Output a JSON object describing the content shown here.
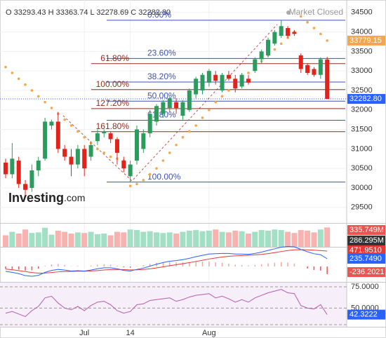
{
  "chart_data": {
    "type": "candlestick",
    "ohlc_names": [
      "O",
      "H",
      "L",
      "C"
    ],
    "last_close_label": "32282.80",
    "status": "Market Closed",
    "watermark": [
      "Investing",
      ".com"
    ],
    "up_color": "#2b9b5e",
    "down_color": "#e2231a",
    "categories": [
      null,
      null,
      null,
      null,
      null,
      null,
      null,
      null,
      null,
      null,
      null,
      null,
      "Jul",
      null,
      null,
      null,
      null,
      null,
      null,
      "14",
      null,
      null,
      null,
      null,
      null,
      null,
      null,
      null,
      null,
      null,
      null,
      "Aug",
      null,
      null,
      null,
      null,
      null,
      null,
      null,
      null,
      null,
      null,
      null,
      null,
      null,
      null,
      null,
      null,
      null,
      null
    ],
    "ylim": [
      29100,
      34820
    ],
    "yticks": [
      29500,
      30000,
      30500,
      31000,
      31500,
      32000,
      32500,
      33000,
      33500,
      34000,
      34500
    ],
    "grid": true,
    "candles": [
      {
        "o": 30650,
        "h": 30750,
        "l": 30250,
        "c": 30350
      },
      {
        "o": 30350,
        "h": 31150,
        "l": 30250,
        "c": 30750
      },
      {
        "o": 30700,
        "h": 30800,
        "l": 30000,
        "c": 30100
      },
      {
        "o": 30100,
        "h": 30200,
        "l": 29800,
        "c": 29950
      },
      {
        "o": 30000,
        "h": 30600,
        "l": 29900,
        "c": 30450
      },
      {
        "o": 30450,
        "h": 30800,
        "l": 30300,
        "c": 30700
      },
      {
        "o": 30750,
        "h": 31800,
        "l": 30700,
        "c": 31700
      },
      {
        "o": 31600,
        "h": 31750,
        "l": 31500,
        "c": 31700
      },
      {
        "o": 31700,
        "h": 31950,
        "l": 30900,
        "c": 31000
      },
      {
        "o": 31000,
        "h": 31100,
        "l": 30700,
        "c": 30800
      },
      {
        "o": 30800,
        "h": 31000,
        "l": 30300,
        "c": 30600
      },
      {
        "o": 30600,
        "h": 31100,
        "l": 30500,
        "c": 31000
      },
      {
        "o": 31000,
        "h": 31100,
        "l": 30300,
        "c": 30500
      },
      {
        "o": 30800,
        "h": 31200,
        "l": 30700,
        "c": 31100
      },
      {
        "o": 31200,
        "h": 31500,
        "l": 31100,
        "c": 31400
      },
      {
        "o": 31400,
        "h": 31500,
        "l": 31300,
        "c": 31450
      },
      {
        "o": 31400,
        "h": 31450,
        "l": 31150,
        "c": 31250
      },
      {
        "o": 31250,
        "h": 31300,
        "l": 30600,
        "c": 30900
      },
      {
        "o": 30700,
        "h": 30800,
        "l": 30400,
        "c": 30500
      },
      {
        "o": 30300,
        "h": 30700,
        "l": 30150,
        "c": 30600
      },
      {
        "o": 30700,
        "h": 31600,
        "l": 30600,
        "c": 31500
      },
      {
        "o": 31000,
        "h": 31500,
        "l": 30900,
        "c": 31400
      },
      {
        "o": 31400,
        "h": 32000,
        "l": 31300,
        "c": 31900
      },
      {
        "o": 31700,
        "h": 32150,
        "l": 31600,
        "c": 32100
      },
      {
        "o": 31900,
        "h": 32250,
        "l": 31800,
        "c": 32200
      },
      {
        "o": 32050,
        "h": 32350,
        "l": 31950,
        "c": 32300
      },
      {
        "o": 32200,
        "h": 32300,
        "l": 31900,
        "c": 32050
      },
      {
        "o": 31850,
        "h": 32250,
        "l": 31750,
        "c": 32200
      },
      {
        "o": 32000,
        "h": 32550,
        "l": 31950,
        "c": 32500
      },
      {
        "o": 32400,
        "h": 32850,
        "l": 32300,
        "c": 32800
      },
      {
        "o": 32500,
        "h": 32950,
        "l": 32400,
        "c": 32900
      },
      {
        "o": 32700,
        "h": 33050,
        "l": 32600,
        "c": 33000
      },
      {
        "o": 32900,
        "h": 33000,
        "l": 32650,
        "c": 32750
      },
      {
        "o": 32500,
        "h": 32950,
        "l": 32450,
        "c": 32900
      },
      {
        "o": 32900,
        "h": 33000,
        "l": 32750,
        "c": 32800
      },
      {
        "o": 32800,
        "h": 32900,
        "l": 32450,
        "c": 32550
      },
      {
        "o": 32600,
        "h": 32950,
        "l": 32550,
        "c": 32900
      },
      {
        "o": 32800,
        "h": 32900,
        "l": 32650,
        "c": 32700
      },
      {
        "o": 33000,
        "h": 33350,
        "l": 32950,
        "c": 33300
      },
      {
        "o": 33300,
        "h": 33550,
        "l": 33200,
        "c": 33500
      },
      {
        "o": 33400,
        "h": 33850,
        "l": 33350,
        "c": 33800
      },
      {
        "o": 33700,
        "h": 34050,
        "l": 33650,
        "c": 34000
      },
      {
        "o": 33900,
        "h": 34300,
        "l": 33850,
        "c": 34150
      },
      {
        "o": 34100,
        "h": 34150,
        "l": 33850,
        "c": 33900
      },
      {
        "o": 34000,
        "h": 34050,
        "l": 33900,
        "c": 33950
      },
      {
        "o": 33400,
        "h": 33450,
        "l": 32950,
        "c": 33050
      },
      {
        "o": 33150,
        "h": 33200,
        "l": 32900,
        "c": 32950
      },
      {
        "o": 33050,
        "h": 33100,
        "l": 32850,
        "c": 32900
      },
      {
        "o": 32900,
        "h": 33350,
        "l": 32800,
        "c": 33300
      },
      {
        "o": 33293.43,
        "h": 33363.74,
        "l": 32278.69,
        "c": 32282.8
      }
    ],
    "sar": {
      "color": "#f5a54a",
      "values": [
        33100,
        32950,
        32800,
        32650,
        32500,
        32350,
        32200,
        32050,
        31900,
        31750,
        31600,
        31450,
        31300,
        31150,
        31000,
        30900,
        30800,
        30750,
        30700,
        30050,
        30100,
        30200,
        30350,
        30500,
        30700,
        30900,
        31100,
        31300,
        31450,
        31600,
        31800,
        32000,
        32200,
        32350,
        32500,
        32650,
        32800,
        32950,
        33100,
        33250,
        33400,
        33550,
        33700,
        33850,
        34000,
        34400,
        34250,
        34100,
        33950,
        33779.15
      ]
    },
    "fib": {
      "color": "#3f51b5",
      "levels": [
        {
          "name": "0.00%",
          "price": 34300
        },
        {
          "name": "23.60%",
          "price": 33321
        },
        {
          "name": "38.20%",
          "price": 32715
        },
        {
          "name": "50.00%",
          "price": 32225
        },
        {
          "name": "61.80%",
          "price": 31735
        },
        {
          "name": "100.00%",
          "price": 30150
        }
      ]
    },
    "fib_ext": {
      "color": "#8b2e1f",
      "levels": [
        {
          "name": "61.80%",
          "price": 33187
        },
        {
          "name": "100.00%",
          "price": 32521
        },
        {
          "name": "127.20%",
          "price": 32035
        },
        {
          "name": "161.80%",
          "price": 31442
        }
      ]
    },
    "volume": {
      "ylim": [
        0,
        400
      ],
      "up_color": "#a3dfc4",
      "down_color": "#f8b3b0",
      "values": [
        200,
        260,
        230,
        300,
        240,
        250,
        330,
        210,
        280,
        260,
        230,
        250,
        240,
        260,
        220,
        230,
        200,
        260,
        250,
        300,
        290,
        260,
        270,
        250,
        240,
        250,
        230,
        260,
        280,
        290,
        270,
        280,
        300,
        260,
        250,
        280,
        270,
        230,
        260,
        290,
        280,
        300,
        290,
        260,
        240,
        290,
        280,
        250,
        300,
        335.749
      ],
      "value_label": "335.749M",
      "ma": 286.295,
      "ma_label": "286.295M"
    },
    "macd": {
      "ylim": [
        -472,
        579
      ],
      "macd_color": "#2962ff",
      "signal_color": "#e53935",
      "macd": [
        -150,
        -180,
        -220,
        -280,
        -300,
        -270,
        -180,
        -120,
        -90,
        -110,
        -140,
        -130,
        -140,
        -110,
        -70,
        -40,
        -40,
        -70,
        -120,
        -140,
        -90,
        -50,
        10,
        70,
        120,
        160,
        180,
        210,
        250,
        300,
        340,
        380,
        390,
        400,
        400,
        380,
        380,
        370,
        400,
        440,
        490,
        540,
        590,
        610,
        600,
        520,
        450,
        390,
        360,
        235.749
      ],
      "signal": [
        -80,
        -100,
        -125,
        -155,
        -185,
        -205,
        -200,
        -185,
        -165,
        -155,
        -150,
        -145,
        -145,
        -138,
        -125,
        -108,
        -95,
        -90,
        -96,
        -105,
        -102,
        -92,
        -72,
        -44,
        -11,
        23,
        54,
        85,
        118,
        154,
        191,
        229,
        261,
        289,
        311,
        325,
        336,
        343,
        354,
        371,
        395,
        424,
        457,
        488,
        510,
        515,
        510,
        498,
        485,
        471.951
      ],
      "hist": [
        -70,
        -80,
        -95,
        -125,
        -115,
        -65,
        20,
        65,
        75,
        45,
        10,
        15,
        5,
        28,
        55,
        68,
        55,
        20,
        -24,
        -35,
        12,
        42,
        82,
        114,
        131,
        137,
        126,
        125,
        132,
        146,
        149,
        151,
        129,
        111,
        89,
        55,
        44,
        27,
        46,
        69,
        95,
        116,
        133,
        122,
        90,
        5,
        -60,
        -108,
        -125,
        -236.2021
      ],
      "macd_label": "235.7490",
      "signal_label": "471.9510"
    },
    "rsi": {
      "ylim": [
        28,
        80
      ],
      "color": "#b65bb0",
      "yticks": [
        {
          "value": 75,
          "label": "75.0000"
        },
        {
          "value": 50,
          "label": "50.0000"
        }
      ],
      "values": [
        44,
        46,
        43,
        40,
        47,
        52,
        62,
        64,
        56,
        50,
        48,
        52,
        47,
        53,
        57,
        58,
        54,
        47,
        44,
        46,
        54,
        55,
        59,
        60,
        61,
        62,
        58,
        60,
        63,
        65,
        66,
        67,
        62,
        64,
        61,
        57,
        60,
        57,
        62,
        65,
        68,
        70,
        72,
        68,
        67,
        53,
        50,
        49,
        54,
        42.3222
      ]
    }
  }
}
